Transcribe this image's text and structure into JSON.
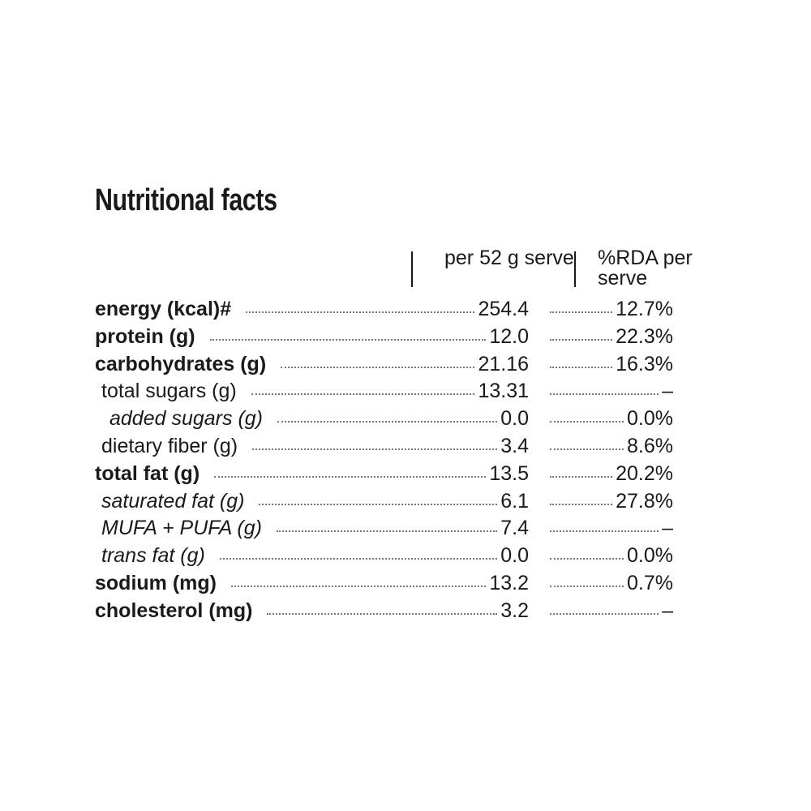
{
  "header": {
    "title": "Nutritional facts"
  },
  "table": {
    "columns": [
      "per 52 g serve",
      "%RDA per serve"
    ],
    "rows": [
      [
        "energy (kcal)#",
        "254.4",
        "12.7%"
      ],
      [
        "protein (g)",
        "12.0",
        "22.3%"
      ],
      [
        "carbohydrates (g)",
        "21.16",
        "16.3%"
      ],
      [
        "total sugars (g)",
        "13.31",
        "–"
      ],
      [
        "added sugars (g)",
        "0.0",
        "0.0%"
      ],
      [
        "dietary fiber (g)",
        "3.4",
        "8.6%"
      ],
      [
        "total fat (g)",
        "13.5",
        "20.2%"
      ],
      [
        "saturated fat (g)",
        "6.1",
        "27.8%"
      ],
      [
        "MUFA + PUFA (g)",
        "7.4",
        "–"
      ],
      [
        "trans fat (g)",
        "0.0",
        "0.0%"
      ],
      [
        "sodium (mg)",
        "13.2",
        "0.7%"
      ],
      [
        "cholesterol (mg)",
        "3.2",
        "–"
      ]
    ]
  }
}
